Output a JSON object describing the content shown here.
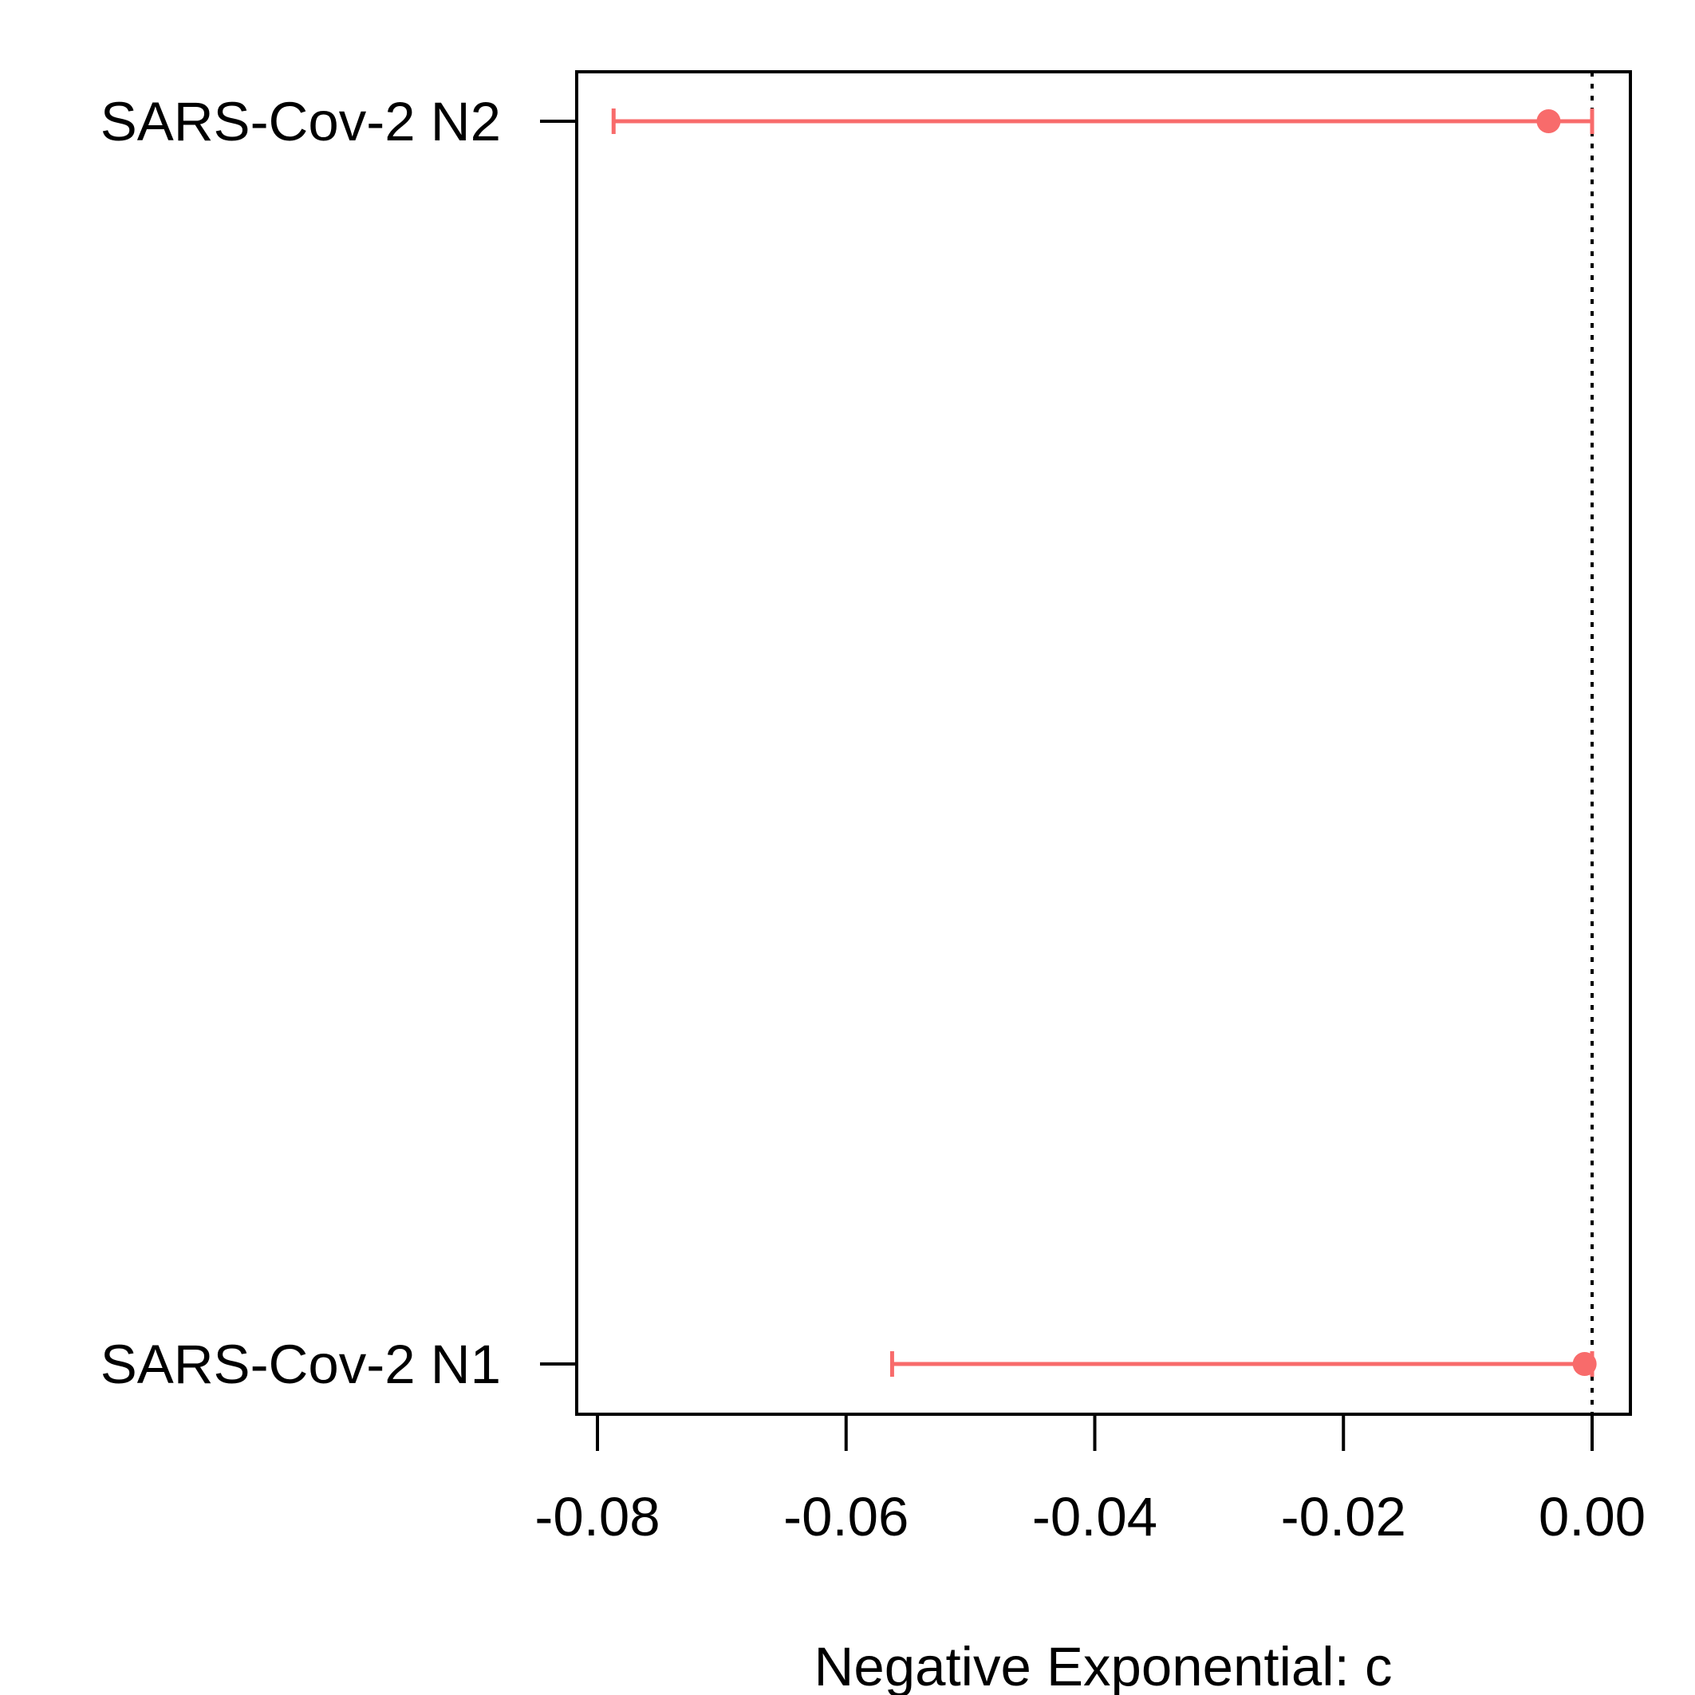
{
  "chart_data": {
    "type": "errorbar",
    "xlabel": "Negative Exponential: c",
    "xlim": [
      -0.0825,
      0.0025
    ],
    "xticks": [
      -0.08,
      -0.06,
      -0.04,
      -0.02,
      0.0
    ],
    "xtick_labels": [
      "-0.08",
      "-0.06",
      "-0.04",
      "-0.02",
      "0.00"
    ],
    "reference_line": {
      "x": 0.0,
      "style": "dotted"
    },
    "categories": [
      "SARS-Cov-2 N1",
      "SARS-Cov-2 N2"
    ],
    "series": [
      {
        "color": "#f86b6b",
        "points": [
          {
            "category": "SARS-Cov-2 N1",
            "estimate": -0.0006,
            "lower": -0.0563,
            "upper": 0.0
          },
          {
            "category": "SARS-Cov-2 N2",
            "estimate": -0.0035,
            "lower": -0.0787,
            "upper": 0.0
          }
        ]
      }
    ],
    "grid": false
  }
}
